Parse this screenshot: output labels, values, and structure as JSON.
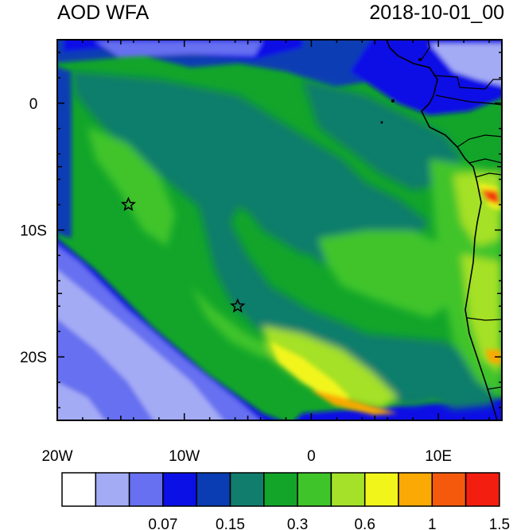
{
  "title_left": "AOD WFA",
  "title_right": "2018-10-01_00",
  "x_axis": {
    "ticks": [
      {
        "lon": -20,
        "label": "20W"
      },
      {
        "lon": -10,
        "label": "10W"
      },
      {
        "lon": 0,
        "label": "0"
      },
      {
        "lon": 10,
        "label": "10E"
      }
    ]
  },
  "y_axis": {
    "ticks": [
      {
        "lat": 0,
        "label": "0"
      },
      {
        "lat": -10,
        "label": "10S"
      },
      {
        "lat": -20,
        "label": "20S"
      }
    ]
  },
  "colorbar": {
    "colors": [
      "#ffffff",
      "#a4abf5",
      "#6670f0",
      "#0a10e6",
      "#0a3cb4",
      "#117d6c",
      "#12a52a",
      "#3fc42a",
      "#a5e128",
      "#f2f51a",
      "#faa905",
      "#f55a0c",
      "#f41e10"
    ],
    "labels": [
      {
        "after_box": 3,
        "text": "0.07"
      },
      {
        "after_box": 5,
        "text": "0.15"
      },
      {
        "after_box": 7,
        "text": "0.3"
      },
      {
        "after_box": 9,
        "text": "0.6"
      },
      {
        "after_box": 11,
        "text": "1"
      },
      {
        "after_box": 13,
        "text": "1.5"
      }
    ]
  },
  "markers": [
    {
      "name": "star-marker-1",
      "lon": -14.4,
      "lat": -8.0
    },
    {
      "name": "star-marker-2",
      "lon": -5.8,
      "lat": -16.0
    }
  ],
  "map_extent": {
    "lon_min": -20,
    "lon_max": 15,
    "lat_min": -25,
    "lat_max": 5
  }
}
